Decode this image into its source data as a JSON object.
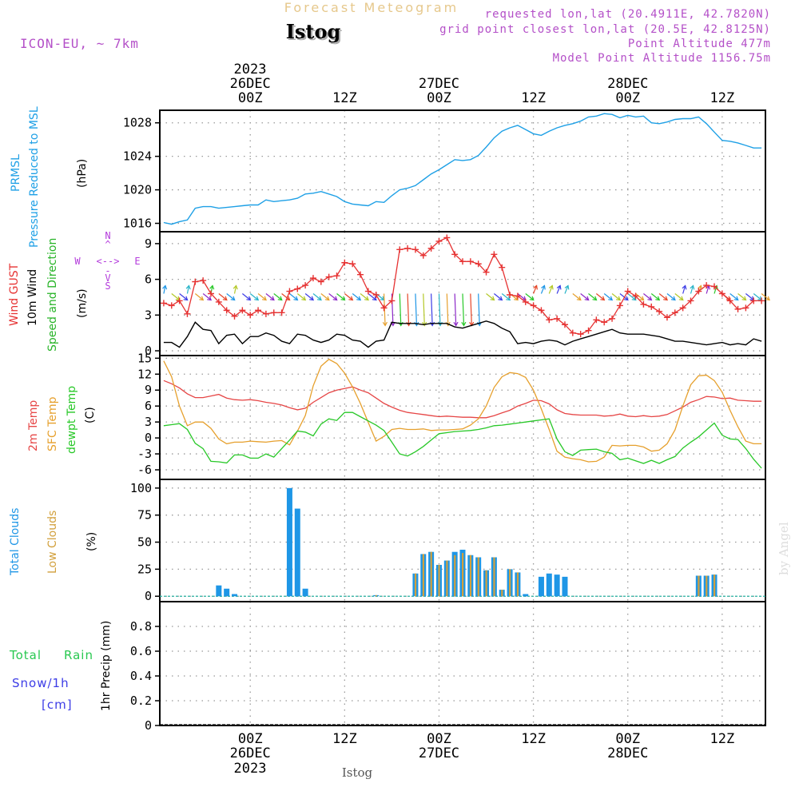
{
  "header": {
    "product": "Forecast Meteogram",
    "station": "Istog",
    "model": "ICON-EU, ~ 7km",
    "requested": "requested lon,lat (20.4911E, 42.7820N)",
    "gridpoint": "grid point closest lon,lat (20.5E, 42.8125N)",
    "altitude": "Point Altitude 477m",
    "model_altitude": "Model Point Altitude 1156.75m",
    "footer_station": "Istog",
    "watermark": "by Angel"
  },
  "colors": {
    "pressure": "#1ea0e6",
    "gust": "#e63232",
    "wind": "#000000",
    "wind_dir": "#28b428",
    "temp": "#e64646",
    "sfc": "#e6a02d",
    "dewpt": "#28c828",
    "total_clouds": "#1e96e6",
    "low_clouds": "#d2a03c",
    "rain": "#28c850",
    "snow": "#3c3ce6",
    "compass": "#b43cdc",
    "header": "#b450c8",
    "title_faint": "#e6c88c"
  },
  "time_axis": {
    "top_year": "2023",
    "bottom_year": "2023",
    "ticks": [
      {
        "hours": 0,
        "hour": "00Z",
        "day": "26DEC"
      },
      {
        "hours": 12,
        "hour": "12Z",
        "day": ""
      },
      {
        "hours": 24,
        "hour": "00Z",
        "day": "27DEC"
      },
      {
        "hours": 36,
        "hour": "12Z",
        "day": ""
      },
      {
        "hours": 48,
        "hour": "00Z",
        "day": "28DEC"
      },
      {
        "hours": 60,
        "hour": "12Z",
        "day": ""
      }
    ]
  },
  "chart_data": [
    {
      "type": "line",
      "panel": "pressure",
      "labels": {
        "l1": "PRMSL",
        "l2": "Pressure Reduced to MSL",
        "unit": "(hPa)"
      },
      "ylim": [
        1015,
        1029.5
      ],
      "yticks": [
        1016,
        1020,
        1024,
        1028
      ],
      "x": [
        -11,
        -10,
        -9,
        -8,
        -7,
        -6,
        -5,
        -4,
        -3,
        -2,
        -1,
        0,
        1,
        2,
        3,
        4,
        5,
        6,
        7,
        8,
        9,
        10,
        11,
        12,
        13,
        14,
        15,
        16,
        17,
        18,
        19,
        20,
        21,
        22,
        23,
        24,
        25,
        26,
        27,
        28,
        29,
        30,
        31,
        32,
        33,
        34,
        35,
        36,
        37,
        38,
        39,
        40,
        41,
        42,
        43,
        44,
        45,
        46,
        47,
        48,
        49,
        50,
        51,
        52,
        53,
        54,
        55,
        56,
        57,
        58,
        59,
        60,
        61,
        62,
        63,
        64,
        65
      ],
      "series": [
        {
          "name": "PRMSL",
          "values": [
            1016.1,
            1015.9,
            1016.2,
            1016.4,
            1017.8,
            1018.0,
            1018.0,
            1017.8,
            1017.9,
            1018.0,
            1018.1,
            1018.2,
            1018.2,
            1018.8,
            1018.6,
            1018.7,
            1018.8,
            1019.0,
            1019.5,
            1019.6,
            1019.8,
            1019.5,
            1019.2,
            1018.6,
            1018.3,
            1018.2,
            1018.1,
            1018.6,
            1018.5,
            1019.3,
            1020.0,
            1020.2,
            1020.5,
            1021.2,
            1021.9,
            1022.4,
            1023.0,
            1023.6,
            1023.5,
            1023.6,
            1024.1,
            1025.1,
            1026.2,
            1027.0,
            1027.4,
            1027.7,
            1027.2,
            1026.7,
            1026.5,
            1027.0,
            1027.4,
            1027.7,
            1027.9,
            1028.2,
            1028.7,
            1028.8,
            1029.1,
            1029.0,
            1028.6,
            1028.9,
            1028.7,
            1028.8,
            1028.0,
            1027.9,
            1028.1,
            1028.4,
            1028.5,
            1028.5,
            1028.7,
            1027.9,
            1026.9,
            1025.9,
            1025.8,
            1025.6,
            1025.3,
            1025.0,
            1025.0
          ]
        }
      ]
    },
    {
      "type": "line",
      "panel": "wind",
      "labels": {
        "l1": "Wind GUST",
        "l2": "10m Wind",
        "l3": "Speed and Direction",
        "unit": "(m/s)"
      },
      "compass": {
        "n": "N",
        "s": "S",
        "w": "W",
        "e": "E",
        "arrows": "<-->",
        "vert_up": "^",
        "vert_mid": "-",
        "vert_dn": "V"
      },
      "ylim": [
        -0.4,
        10
      ],
      "yticks": [
        0,
        3,
        6,
        9
      ],
      "x": [
        -11,
        -10,
        -9,
        -8,
        -7,
        -6,
        -5,
        -4,
        -3,
        -2,
        -1,
        0,
        1,
        2,
        3,
        4,
        5,
        6,
        7,
        8,
        9,
        10,
        11,
        12,
        13,
        14,
        15,
        16,
        17,
        18,
        19,
        20,
        21,
        22,
        23,
        24,
        25,
        26,
        27,
        28,
        29,
        30,
        31,
        32,
        33,
        34,
        35,
        36,
        37,
        38,
        39,
        40,
        41,
        42,
        43,
        44,
        45,
        46,
        47,
        48,
        49,
        50,
        51,
        52,
        53,
        54,
        55,
        56,
        57,
        58,
        59,
        60,
        61,
        62,
        63,
        64,
        65
      ],
      "series": [
        {
          "name": "Wind GUST",
          "values": [
            4.0,
            3.8,
            4.2,
            3.1,
            5.8,
            5.9,
            4.8,
            4.1,
            3.4,
            2.9,
            3.4,
            3.0,
            3.4,
            3.1,
            3.2,
            3.2,
            5.0,
            5.2,
            5.5,
            6.1,
            5.8,
            6.2,
            6.3,
            7.4,
            7.3,
            6.4,
            5.0,
            4.7,
            3.6,
            4.2,
            8.5,
            8.6,
            8.5,
            8.0,
            8.6,
            9.2,
            9.5,
            8.1,
            7.5,
            7.5,
            7.3,
            6.6,
            8.1,
            7.0,
            4.7,
            4.6,
            4.1,
            3.8,
            3.4,
            2.6,
            2.7,
            2.2,
            1.5,
            1.4,
            1.7,
            2.6,
            2.4,
            2.7,
            3.8,
            5.0,
            4.6,
            3.9,
            3.7,
            3.3,
            2.8,
            3.2,
            3.6,
            4.2,
            5.0,
            5.5,
            5.4,
            4.8,
            4.2,
            3.5,
            3.6,
            4.2,
            4.2
          ]
        },
        {
          "name": "10m Wind",
          "values": [
            0.7,
            0.7,
            0.3,
            1.2,
            2.4,
            1.8,
            1.7,
            0.6,
            1.3,
            1.4,
            0.6,
            1.2,
            1.2,
            1.5,
            1.3,
            0.8,
            0.6,
            1.4,
            1.3,
            0.9,
            0.7,
            0.9,
            1.4,
            1.3,
            0.9,
            0.8,
            0.3,
            0.8,
            0.9,
            2.4,
            2.3,
            2.3,
            2.3,
            2.2,
            2.3,
            2.3,
            2.3,
            2.0,
            1.9,
            2.1,
            2.3,
            2.5,
            2.3,
            1.9,
            1.6,
            0.6,
            0.7,
            0.6,
            0.8,
            0.9,
            0.8,
            0.5,
            0.8,
            1.0,
            1.2,
            1.4,
            1.6,
            1.8,
            1.5,
            1.4,
            1.4,
            1.4,
            1.3,
            1.2,
            1.0,
            0.8,
            0.8,
            0.7,
            0.6,
            0.5,
            0.6,
            0.7,
            0.5,
            0.6,
            0.5,
            1.0,
            0.8
          ]
        }
      ]
    },
    {
      "type": "line",
      "panel": "temperature",
      "labels": {
        "l1": "2m Temp",
        "l2": "SFC Temp",
        "l3": "dewpt Temp",
        "unit": "(C)"
      },
      "ylim": [
        -7.8,
        15.5
      ],
      "yticks": [
        15,
        12,
        9,
        6,
        3,
        0,
        -3,
        -6
      ],
      "x": [
        -11,
        -10,
        -9,
        -8,
        -7,
        -6,
        -5,
        -4,
        -3,
        -2,
        -1,
        0,
        1,
        2,
        3,
        4,
        5,
        6,
        7,
        8,
        9,
        10,
        11,
        12,
        13,
        14,
        15,
        16,
        17,
        18,
        19,
        20,
        21,
        22,
        23,
        24,
        25,
        26,
        27,
        28,
        29,
        30,
        31,
        32,
        33,
        34,
        35,
        36,
        37,
        38,
        39,
        40,
        41,
        42,
        43,
        44,
        45,
        46,
        47,
        48,
        49,
        50,
        51,
        52,
        53,
        54,
        55,
        56,
        57,
        58,
        59,
        60,
        61,
        62,
        63,
        64,
        65
      ],
      "series": [
        {
          "name": "2m Temp",
          "values": [
            10.8,
            10.2,
            9.4,
            8.3,
            7.6,
            7.6,
            7.9,
            8.2,
            7.5,
            7.2,
            7.1,
            7.2,
            7.0,
            6.7,
            6.5,
            6.2,
            5.7,
            5.3,
            5.6,
            6.7,
            7.6,
            8.5,
            9.0,
            9.3,
            9.6,
            9.0,
            8.5,
            7.5,
            6.5,
            5.8,
            5.2,
            4.8,
            4.6,
            4.4,
            4.2,
            4.0,
            4.1,
            4.0,
            3.9,
            3.9,
            3.8,
            3.8,
            4.2,
            4.7,
            5.2,
            6.0,
            6.5,
            7.1,
            7.0,
            6.4,
            5.3,
            4.6,
            4.4,
            4.3,
            4.3,
            4.3,
            4.1,
            4.2,
            4.5,
            4.1,
            4.0,
            4.2,
            4.0,
            4.1,
            4.4,
            5.1,
            5.8,
            6.7,
            7.2,
            7.8,
            7.7,
            7.4,
            7.5,
            7.1,
            7.0,
            6.9,
            6.9
          ]
        },
        {
          "name": "SFC Temp",
          "values": [
            14.5,
            11.5,
            6.0,
            2.3,
            3.0,
            3.0,
            1.8,
            -0.2,
            -1.1,
            -0.8,
            -0.8,
            -0.6,
            -0.7,
            -0.8,
            -0.6,
            -0.5,
            -1.3,
            1.3,
            4.2,
            9.8,
            13.5,
            14.8,
            14.0,
            12.2,
            9.6,
            6.5,
            2.9,
            -0.6,
            0.3,
            1.6,
            1.8,
            1.6,
            1.6,
            1.7,
            1.4,
            1.5,
            1.5,
            1.6,
            1.7,
            2.4,
            3.6,
            6.0,
            9.5,
            11.5,
            12.3,
            12.1,
            11.4,
            9.0,
            5.5,
            1.6,
            -2.5,
            -3.6,
            -3.9,
            -4.1,
            -4.5,
            -4.4,
            -3.6,
            -1.4,
            -1.5,
            -1.4,
            -1.4,
            -1.7,
            -2.5,
            -2.3,
            -1.1,
            1.5,
            6.0,
            10.0,
            11.7,
            11.8,
            10.8,
            8.6,
            5.2,
            2.1,
            -0.6,
            -1.1,
            -1.1
          ]
        },
        {
          "name": "dewpt Temp",
          "values": [
            2.3,
            2.5,
            2.7,
            1.6,
            -1.0,
            -2.0,
            -4.4,
            -4.5,
            -4.7,
            -3.2,
            -3.2,
            -3.8,
            -3.8,
            -3.0,
            -3.6,
            -2.0,
            -0.4,
            1.3,
            1.1,
            0.4,
            2.6,
            3.6,
            3.3,
            4.8,
            4.8,
            4.0,
            3.2,
            2.4,
            1.4,
            -0.8,
            -3.0,
            -3.4,
            -2.6,
            -1.6,
            -0.4,
            0.8,
            1.0,
            1.2,
            1.3,
            1.4,
            1.6,
            1.9,
            2.3,
            2.4,
            2.6,
            2.8,
            3.0,
            3.2,
            3.4,
            3.6,
            -0.2,
            -2.6,
            -3.3,
            -2.3,
            -2.2,
            -2.1,
            -2.6,
            -2.9,
            -4.1,
            -3.8,
            -4.3,
            -4.8,
            -4.2,
            -4.8,
            -4.1,
            -3.5,
            -1.9,
            -0.8,
            0.2,
            1.5,
            2.8,
            0.5,
            -0.2,
            -0.3,
            -2.0,
            -4.0,
            -5.7
          ]
        }
      ]
    },
    {
      "type": "bar",
      "panel": "clouds",
      "labels": {
        "l1": "Total Clouds",
        "l2": "Low Clouds",
        "unit": "(%)"
      },
      "ylim": [
        -5,
        108
      ],
      "yticks": [
        0,
        25,
        50,
        75,
        100
      ],
      "x": [
        -4,
        -3,
        -2,
        5,
        6,
        7,
        16,
        21,
        22,
        23,
        24,
        25,
        26,
        27,
        28,
        29,
        30,
        31,
        32,
        33,
        34,
        35,
        37,
        38,
        39,
        40,
        57,
        58,
        59
      ],
      "series": [
        {
          "name": "Total Clouds",
          "values": [
            10,
            7,
            2,
            100,
            81,
            7,
            1,
            21,
            39,
            41,
            29,
            33,
            41,
            43,
            38,
            36,
            24,
            36,
            6,
            25,
            22,
            2,
            18,
            21,
            20,
            18,
            19,
            19,
            20
          ]
        },
        {
          "name": "Low Clouds",
          "values": [
            0,
            0,
            0,
            0,
            0,
            0,
            1,
            21,
            39,
            41,
            29,
            33,
            38,
            40,
            38,
            36,
            24,
            36,
            6,
            25,
            22,
            0,
            0,
            0,
            0,
            0,
            19,
            19,
            20
          ]
        }
      ]
    },
    {
      "type": "line",
      "panel": "precip",
      "labels": {
        "l1": "Total",
        "l2": "Rain",
        "l3": "Snow/1h",
        "l4": "[cm]",
        "unit": "1hr Precip (mm)"
      },
      "ylim": [
        0,
        1.0
      ],
      "yticks": [
        0,
        0.2,
        0.4,
        0.6,
        0.8
      ],
      "ytick_labels": [
        "0",
        "0.2",
        "0.4",
        "0.6",
        "0.8"
      ],
      "x": [
        -11,
        65
      ],
      "series": [
        {
          "name": "Total Rain",
          "values": [
            0,
            0
          ]
        },
        {
          "name": "Snow/1h",
          "values": [
            0,
            0
          ]
        }
      ]
    }
  ]
}
